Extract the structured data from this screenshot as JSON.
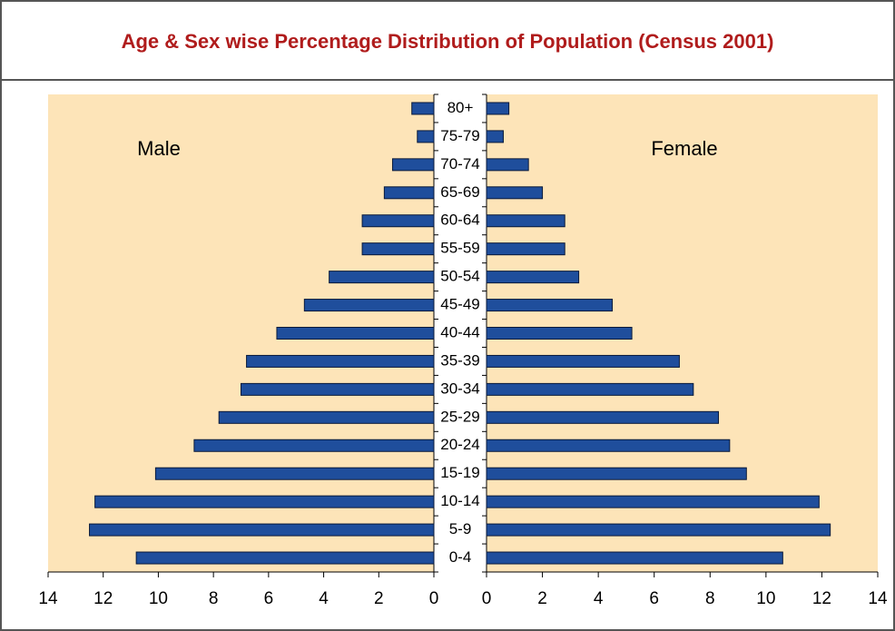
{
  "chart_data": {
    "type": "pyramid",
    "title": "Age & Sex wise Percentage Distribution of Population (Census 2001)",
    "categories": [
      "80+",
      "75-79",
      "70-74",
      "65-69",
      "60-64",
      "55-59",
      "50-54",
      "45-49",
      "40-44",
      "35-39",
      "30-34",
      "25-29",
      "20-24",
      "15-19",
      "10-14",
      "5-9",
      "0-4"
    ],
    "series": [
      {
        "name": "Male",
        "color": "#1f4e9c",
        "values": [
          0.8,
          0.6,
          1.5,
          1.8,
          2.6,
          2.6,
          3.8,
          4.7,
          5.7,
          6.8,
          7.0,
          7.8,
          8.7,
          10.1,
          12.3,
          12.5,
          10.8
        ]
      },
      {
        "name": "Female",
        "color": "#1f4e9c",
        "values": [
          0.8,
          0.6,
          1.5,
          2.0,
          2.8,
          2.8,
          3.3,
          4.5,
          5.2,
          6.9,
          7.4,
          8.3,
          8.7,
          9.3,
          11.9,
          12.3,
          10.6
        ]
      }
    ],
    "xlim": [
      0,
      14
    ],
    "xticks": [
      0,
      2,
      4,
      6,
      8,
      10,
      12,
      14
    ]
  }
}
